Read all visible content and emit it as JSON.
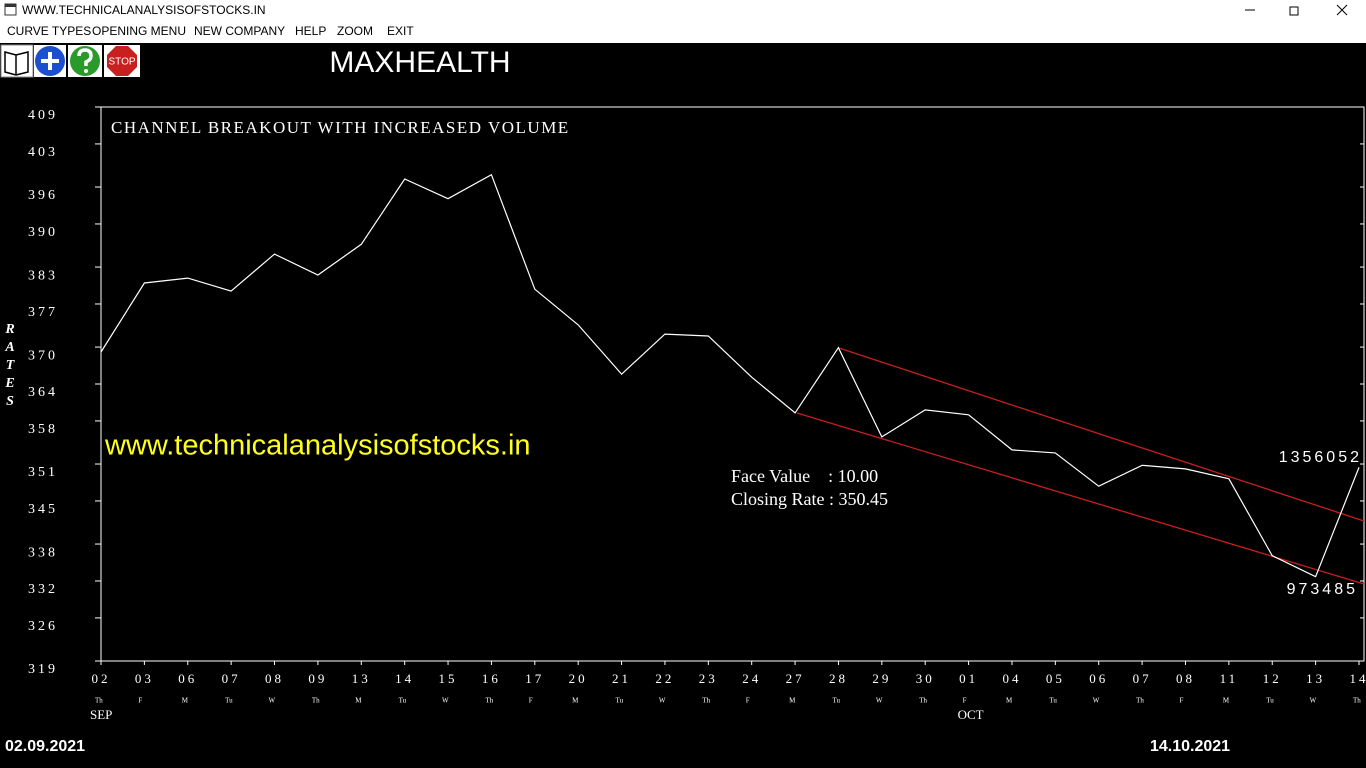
{
  "window": {
    "title": "WWW.TECHNICALANALYSISOFSTOCKS.IN"
  },
  "menu": [
    "CURVE TYPES",
    "OPENING MENU",
    "NEW COMPANY",
    "HELP",
    "ZOOM",
    "EXIT"
  ],
  "toolbar": {
    "stop_icon": "STOP"
  },
  "company": "MAXHEALTH",
  "start_date": "02.09.2021",
  "end_date": "14.10.2021",
  "chart_data": {
    "type": "line",
    "title": "CHANNEL BREAKOUT WITH INCREASED VOLUME",
    "watermark": "www.technicalanalysisofstocks.in",
    "info": [
      "Face Value    : 10.00",
      "Closing Rate : 350.45"
    ],
    "y_label": "RATES",
    "categories": [
      "02",
      "03",
      "06",
      "07",
      "08",
      "09",
      "13",
      "14",
      "15",
      "16",
      "17",
      "20",
      "21",
      "22",
      "23",
      "24",
      "27",
      "28",
      "29",
      "30",
      "01",
      "04",
      "05",
      "06",
      "07",
      "08",
      "11",
      "12",
      "13",
      "14"
    ],
    "weekdays": [
      "Th",
      "F",
      "M",
      "Tu",
      "W",
      "Th",
      "M",
      "Tu",
      "W",
      "Th",
      "F",
      "M",
      "Tu",
      "W",
      "Th",
      "F",
      "M",
      "Tu",
      "W",
      "Th",
      "F",
      "M",
      "Tu",
      "W",
      "Th",
      "F",
      "M",
      "Tu",
      "W",
      "Th"
    ],
    "months": [
      "SEP",
      null,
      null,
      null,
      null,
      null,
      null,
      null,
      null,
      null,
      null,
      null,
      null,
      null,
      null,
      null,
      null,
      null,
      null,
      null,
      "OCT",
      null,
      null,
      null,
      null,
      null,
      null,
      null,
      null,
      null
    ],
    "series": [
      {
        "color": "#ffffff",
        "values": [
          369.2,
          380.4,
          381.2,
          379.1,
          385.1,
          381.7,
          386.7,
          397.3,
          394.1,
          398.0,
          379.4,
          373.6,
          365.6,
          372.1,
          371.8,
          365.1,
          359.3,
          369.9,
          355.4,
          359.8,
          359.0,
          353.3,
          352.8,
          347.4,
          350.8,
          350.2,
          348.6,
          336.1,
          332.7,
          350.45
        ]
      }
    ],
    "volume_labels": [
      "1356052",
      "973485"
    ],
    "ylim": [
      319,
      409
    ],
    "yticks": [
      409,
      403,
      396,
      390,
      383,
      377,
      370,
      364,
      358,
      351,
      345,
      338,
      332,
      326,
      319
    ]
  }
}
